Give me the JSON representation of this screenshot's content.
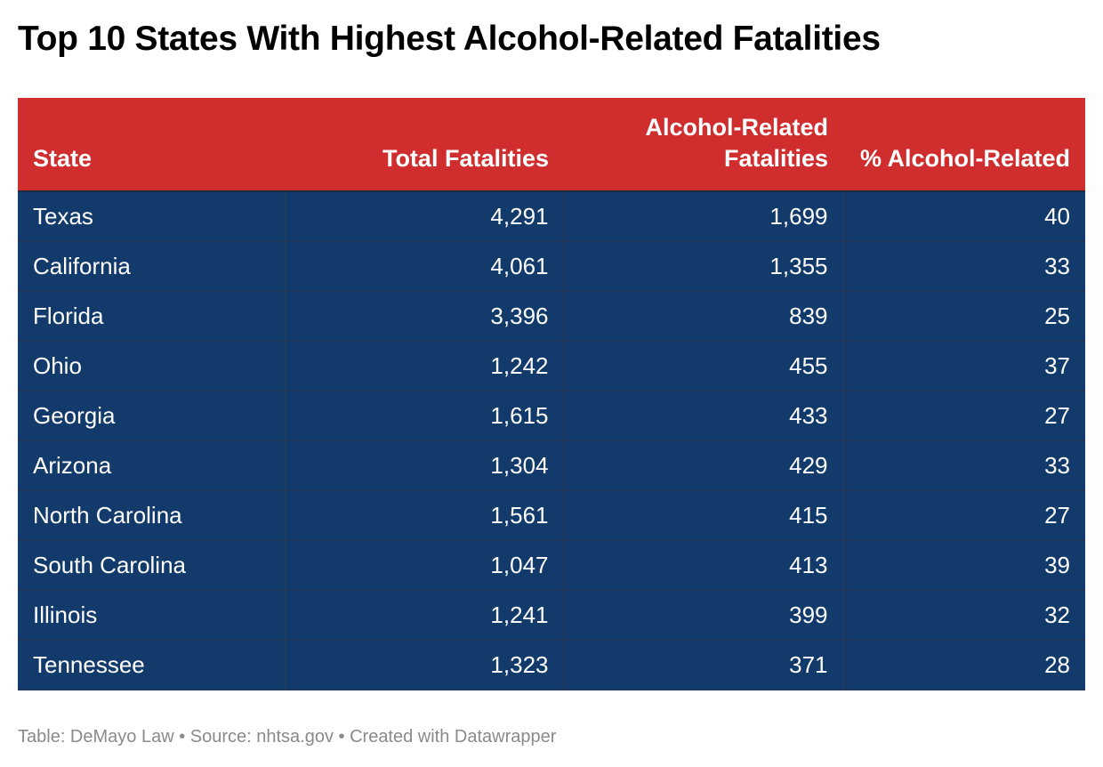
{
  "title": "Top 10 States With Highest Alcohol-Related Fatalities",
  "source_line": "Table: DeMayo Law • Source: nhtsa.gov • Created with Datawrapper",
  "colors": {
    "header_bg": "#cf2d2e",
    "row_bg": "#123a6a",
    "text": "#ffffff"
  },
  "chart_data": {
    "type": "table",
    "title": "Top 10 States With Highest Alcohol-Related Fatalities",
    "columns": [
      "State",
      "Total Fatalities",
      "Alcohol-Related Fatalities",
      "% Alcohol-Related"
    ],
    "rows": [
      [
        "Texas",
        "4,291",
        "1,699",
        "40"
      ],
      [
        "California",
        "4,061",
        "1,355",
        "33"
      ],
      [
        "Florida",
        "3,396",
        "839",
        "25"
      ],
      [
        "Ohio",
        "1,242",
        "455",
        "37"
      ],
      [
        "Georgia",
        "1,615",
        "433",
        "27"
      ],
      [
        "Arizona",
        "1,304",
        "429",
        "33"
      ],
      [
        "North Carolina",
        "1,561",
        "415",
        "27"
      ],
      [
        "South Carolina",
        "1,047",
        "413",
        "39"
      ],
      [
        "Illinois",
        "1,241",
        "399",
        "32"
      ],
      [
        "Tennessee",
        "1,323",
        "371",
        "28"
      ]
    ]
  }
}
